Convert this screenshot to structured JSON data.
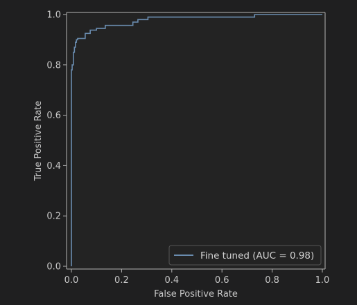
{
  "chart_data": {
    "type": "line",
    "title": "",
    "xlabel": "False Positive Rate",
    "ylabel": "True Positive Rate",
    "xlim": [
      0,
      1
    ],
    "ylim": [
      0,
      1
    ],
    "xticks": [
      "0.0",
      "0.2",
      "0.4",
      "0.6",
      "0.8",
      "1.0"
    ],
    "yticks": [
      "0.0",
      "0.2",
      "0.4",
      "0.6",
      "0.8",
      "1.0"
    ],
    "grid": false,
    "legend_position": "lower-right",
    "series": [
      {
        "name": "Fine tuned (AUC = 0.98)",
        "color": "#6a8caf",
        "x": [
          0.0,
          0.0,
          0.003,
          0.003,
          0.008,
          0.008,
          0.012,
          0.012,
          0.016,
          0.016,
          0.02,
          0.02,
          0.025,
          0.025,
          0.055,
          0.055,
          0.075,
          0.075,
          0.1,
          0.1,
          0.135,
          0.135,
          0.245,
          0.245,
          0.265,
          0.265,
          0.305,
          0.305,
          0.73,
          0.73,
          1.0
        ],
        "y": [
          0.0,
          0.78,
          0.78,
          0.8,
          0.8,
          0.85,
          0.85,
          0.87,
          0.87,
          0.89,
          0.89,
          0.9,
          0.9,
          0.905,
          0.905,
          0.925,
          0.925,
          0.938,
          0.938,
          0.945,
          0.945,
          0.957,
          0.957,
          0.97,
          0.97,
          0.98,
          0.98,
          0.99,
          0.99,
          1.0,
          1.0
        ]
      }
    ]
  }
}
